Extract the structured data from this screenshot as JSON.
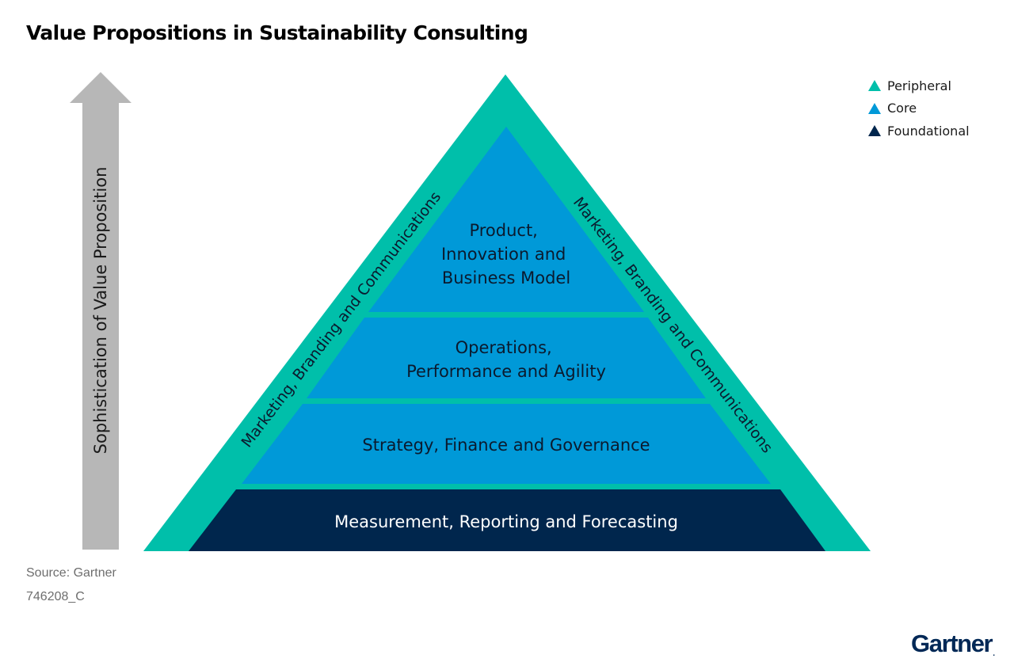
{
  "title": "Value Propositions in Sustainability Consulting",
  "axis": {
    "label": "Sophistication of Value Proposition"
  },
  "pyramid": {
    "outer_band": {
      "left_label": "Marketing, Branding and Communications",
      "right_label": "Marketing, Branding and Communications",
      "category": "Peripheral"
    },
    "tiers": [
      {
        "lines": [
          "Product,",
          "Innovation and",
          "Business Model"
        ],
        "category": "Core"
      },
      {
        "lines": [
          "Operations,",
          "Performance and Agility"
        ],
        "category": "Core"
      },
      {
        "lines": [
          "Strategy, Finance and Governance"
        ],
        "category": "Core"
      },
      {
        "lines": [
          "Measurement, Reporting and Forecasting"
        ],
        "category": "Foundational"
      }
    ]
  },
  "legend": [
    {
      "label": "Peripheral",
      "color": "#00bfaa"
    },
    {
      "label": "Core",
      "color": "#0099d8"
    },
    {
      "label": "Foundational",
      "color": "#00264d"
    }
  ],
  "colors": {
    "peripheral": "#00bfaa",
    "core": "#0099d8",
    "foundational": "#00264d",
    "axis_arrow": "#b7b7b7"
  },
  "source": "Source: Gartner",
  "doc_id": "746208_C",
  "brand": {
    "name": "Gartner",
    "mark": "."
  }
}
